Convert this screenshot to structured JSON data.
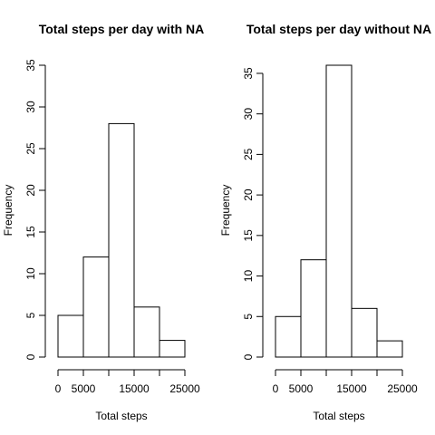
{
  "chart_data": [
    {
      "type": "bar",
      "title": "Total steps per day with NA",
      "xlabel": "Total steps",
      "ylabel": "Frequency",
      "bins": [
        [
          0,
          5000
        ],
        [
          5000,
          10000
        ],
        [
          10000,
          15000
        ],
        [
          15000,
          20000
        ],
        [
          20000,
          25000
        ]
      ],
      "values": [
        5,
        12,
        28,
        6,
        2
      ],
      "xlim": [
        0,
        25000
      ],
      "ylim": [
        0,
        35
      ],
      "x_ticks": [
        0,
        5000,
        10000,
        15000,
        20000,
        25000
      ],
      "x_tick_labels": [
        "0",
        "5000",
        "",
        "15000",
        "",
        "25000"
      ],
      "y_ticks": [
        0,
        5,
        10,
        15,
        20,
        25,
        30,
        35
      ],
      "y_tick_labels": [
        "0",
        "5",
        "10",
        "15",
        "20",
        "25",
        "30",
        "35"
      ],
      "grid": false
    },
    {
      "type": "bar",
      "title": "Total steps per day without NA",
      "xlabel": "Total steps",
      "ylabel": "Frequency",
      "bins": [
        [
          0,
          5000
        ],
        [
          5000,
          10000
        ],
        [
          10000,
          15000
        ],
        [
          15000,
          20000
        ],
        [
          20000,
          25000
        ]
      ],
      "values": [
        5,
        12,
        36,
        6,
        2
      ],
      "xlim": [
        0,
        25000
      ],
      "ylim": [
        0,
        36
      ],
      "x_ticks": [
        0,
        5000,
        10000,
        15000,
        20000,
        25000
      ],
      "x_tick_labels": [
        "0",
        "5000",
        "",
        "15000",
        "",
        "25000"
      ],
      "y_ticks": [
        0,
        5,
        10,
        15,
        20,
        25,
        30,
        35
      ],
      "y_tick_labels": [
        "0",
        "5",
        "10",
        "15",
        "20",
        "25",
        "30",
        "35"
      ],
      "grid": false
    }
  ]
}
